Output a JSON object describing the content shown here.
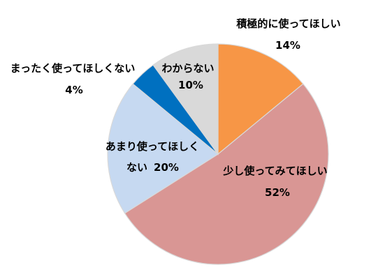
{
  "chart_data": {
    "type": "pie",
    "title": "",
    "start_angle_deg": 0,
    "direction": "clockwise",
    "legend": "none",
    "slices": [
      {
        "key": "active",
        "label": "積極的に使ってほしい",
        "percent_label": "14%",
        "value": 14,
        "color": "#f79646"
      },
      {
        "key": "little",
        "label": "少し使ってみてほしい",
        "percent_label": "52%",
        "value": 52,
        "color": "#d99694"
      },
      {
        "key": "not-much",
        "label": "あまり使ってほしく",
        "label_cont": "ない",
        "percent_label": "20%",
        "value": 20,
        "color": "#c6d9f1"
      },
      {
        "key": "not-at-all",
        "label": "まったく使ってほしくない",
        "percent_label": "4%",
        "value": 4,
        "color": "#0070c0"
      },
      {
        "key": "dont-know",
        "label": "わからない",
        "percent_label": "10%",
        "value": 10,
        "color": "#d9d9d9"
      }
    ]
  }
}
